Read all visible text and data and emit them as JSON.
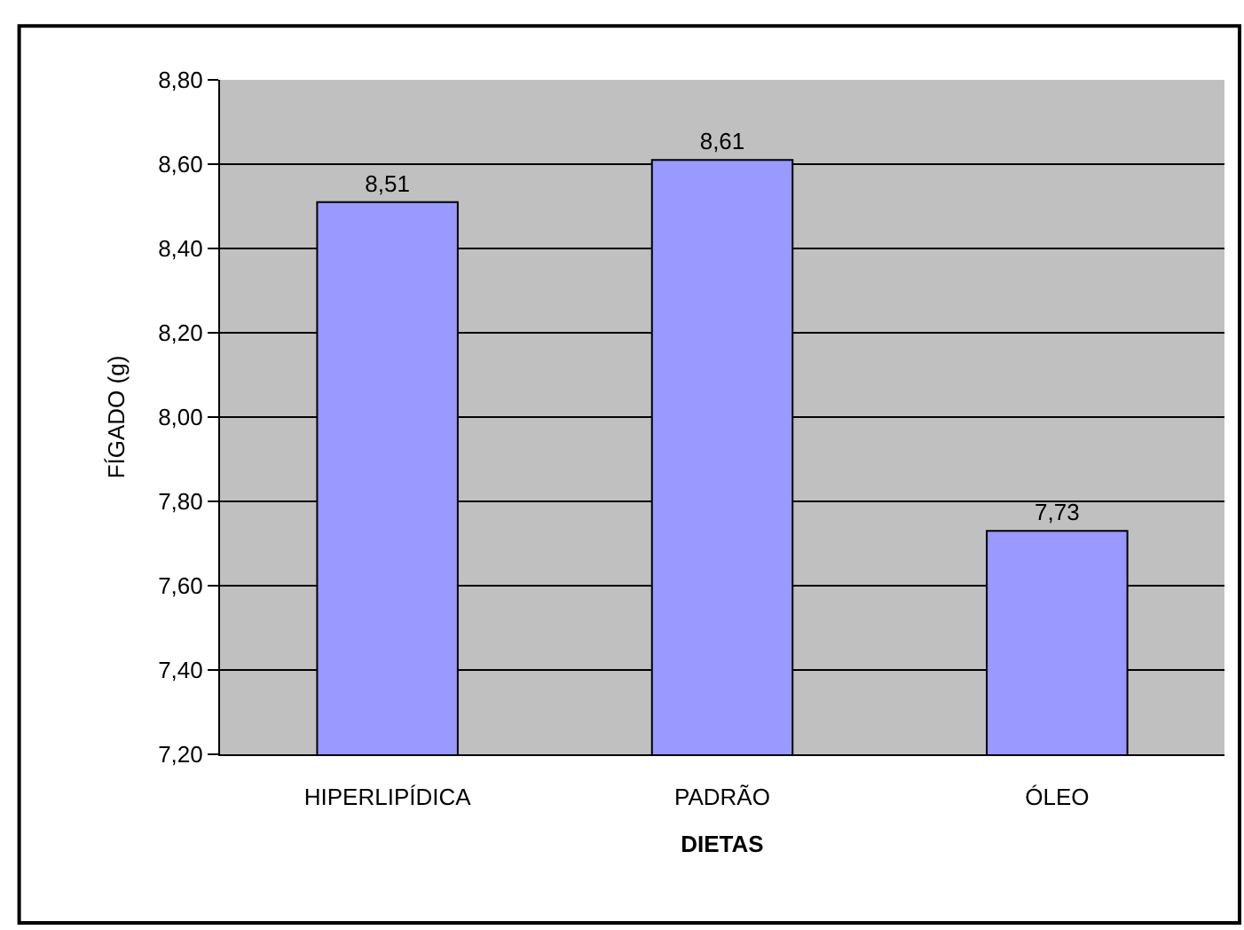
{
  "chart_data": {
    "type": "bar",
    "xlabel": "DIETAS",
    "ylabel": "FÍGADO (g)",
    "categories": [
      "HIPERLIPÍDICA",
      "PADRÃO",
      "ÓLEO"
    ],
    "values": [
      8.51,
      8.61,
      7.73
    ],
    "color": "#9999ff",
    "value_labels": [
      "8,51",
      "8,61",
      "7,73"
    ],
    "ylim": [
      7.2,
      8.8
    ],
    "yticks": [
      {
        "value": 7.2,
        "label": "7,20"
      },
      {
        "value": 7.4,
        "label": "7,40"
      },
      {
        "value": 7.6,
        "label": "7,60"
      },
      {
        "value": 7.8,
        "label": "7,80"
      },
      {
        "value": 8.0,
        "label": "8,00"
      },
      {
        "value": 8.2,
        "label": "8,20"
      },
      {
        "value": 8.4,
        "label": "8,40"
      },
      {
        "value": 8.6,
        "label": "8,60"
      },
      {
        "value": 8.8,
        "label": "8,80"
      }
    ],
    "grid": "y",
    "legend": false
  }
}
